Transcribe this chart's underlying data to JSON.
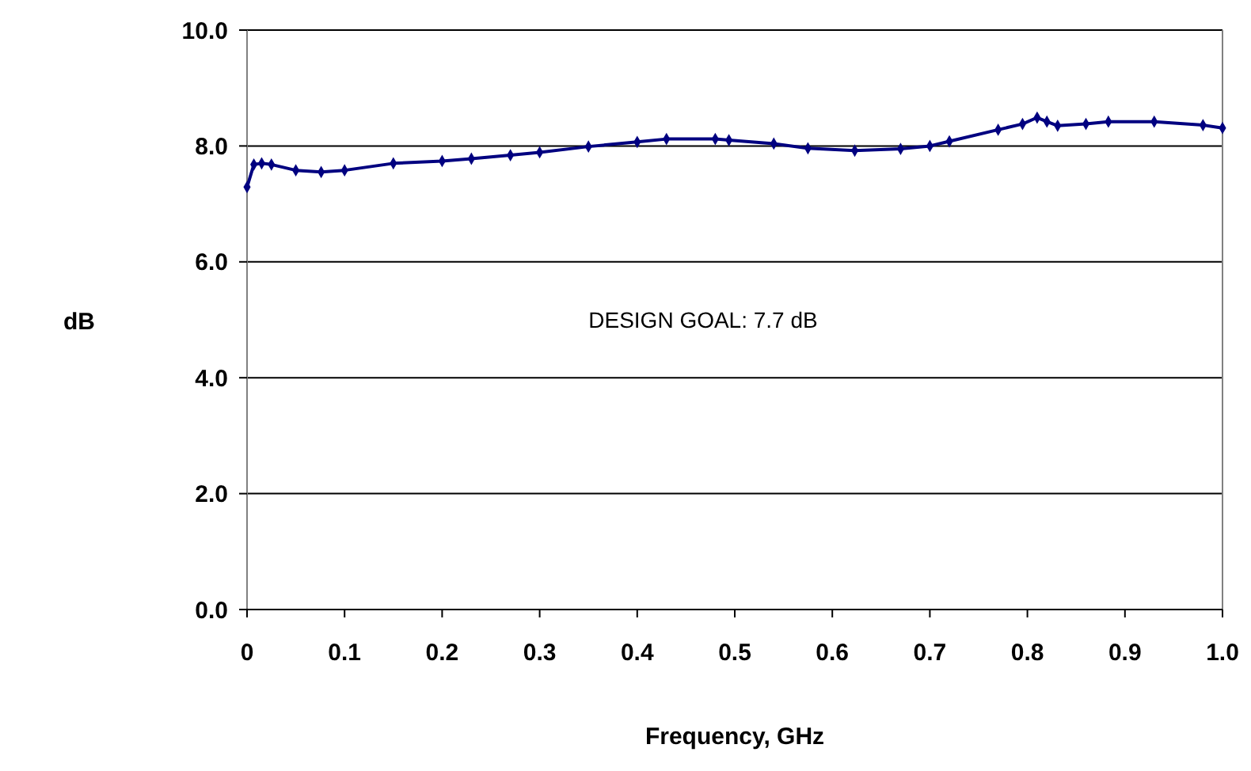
{
  "chart_data": {
    "type": "line",
    "xlabel": "Frequency, GHz",
    "ylabel": "dB",
    "annotations": [
      "DESIGN GOAL: 7.7 dB"
    ],
    "x": [
      0,
      0.007,
      0.015,
      0.025,
      0.05,
      0.076,
      0.1,
      0.15,
      0.2,
      0.23,
      0.27,
      0.3,
      0.35,
      0.4,
      0.43,
      0.48,
      0.494,
      0.54,
      0.575,
      0.623,
      0.67,
      0.7,
      0.72,
      0.77,
      0.795,
      0.81,
      0.82,
      0.831,
      0.86,
      0.883,
      0.93,
      0.98,
      1.0
    ],
    "series": [
      {
        "color": "#000080",
        "values": [
          7.29,
          7.68,
          7.7,
          7.68,
          7.58,
          7.55,
          7.58,
          7.7,
          7.74,
          7.78,
          7.84,
          7.89,
          7.99,
          8.07,
          8.12,
          8.12,
          8.1,
          8.04,
          7.96,
          7.92,
          7.95,
          8.0,
          8.08,
          8.28,
          8.38,
          8.49,
          8.42,
          8.35,
          8.38,
          8.42,
          8.42,
          8.36,
          8.31
        ]
      }
    ],
    "xlim": [
      0,
      1
    ],
    "ylim": [
      0,
      10
    ],
    "xticks": [
      0,
      0.1,
      0.2,
      0.3,
      0.4,
      0.5,
      0.6,
      0.7,
      0.8,
      0.9,
      {
        "value": 1,
        "label": "1.0"
      }
    ],
    "yticks": [
      {
        "value": 0,
        "label": "0.0"
      },
      {
        "value": 2,
        "label": "2.0"
      },
      {
        "value": 4,
        "label": "4.0"
      },
      {
        "value": 6,
        "label": "6.0"
      },
      {
        "value": 8,
        "label": "8.0"
      },
      {
        "value": 10,
        "label": "10.0"
      }
    ],
    "grid": "y",
    "marker": "diamond",
    "line_style": "solid"
  }
}
